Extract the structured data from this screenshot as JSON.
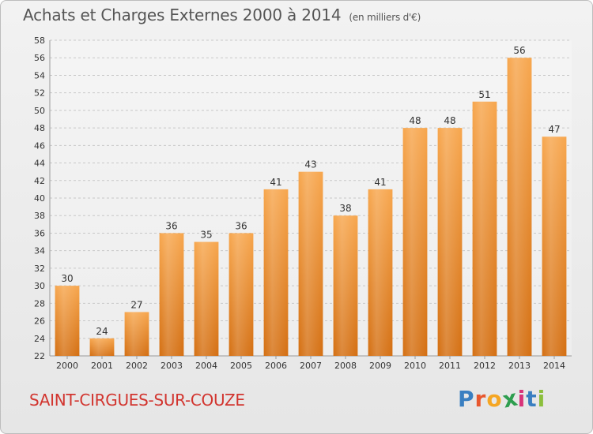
{
  "chart_data": {
    "type": "bar",
    "title": "Achats et Charges Externes 2000 à 2014",
    "subtitle": "(en milliers d'€)",
    "categories": [
      "2000",
      "2001",
      "2002",
      "2003",
      "2004",
      "2005",
      "2006",
      "2007",
      "2008",
      "2009",
      "2010",
      "2011",
      "2012",
      "2013",
      "2014"
    ],
    "values": [
      30,
      24,
      27,
      36,
      35,
      36,
      41,
      43,
      38,
      41,
      48,
      48,
      51,
      56,
      47
    ],
    "ylim": [
      22,
      58
    ],
    "yticks": [
      22,
      24,
      26,
      28,
      30,
      32,
      34,
      36,
      38,
      40,
      42,
      44,
      46,
      48,
      50,
      52,
      54,
      56,
      58
    ],
    "grid": true,
    "bar_color_top": "#f7a64d",
    "bar_color_bottom": "#d46f12"
  },
  "footer": {
    "commune": "SAINT-CIRGUES-SUR-COUZE"
  },
  "logo": {
    "letters": [
      "P",
      "r",
      "o",
      "x",
      "i",
      "t",
      "i"
    ],
    "colors": [
      "#3a7fc1",
      "#e8582f",
      "#f5a623",
      "#2e9e4f",
      "#d8337a",
      "#3a7fc1",
      "#8bbf3c"
    ]
  }
}
